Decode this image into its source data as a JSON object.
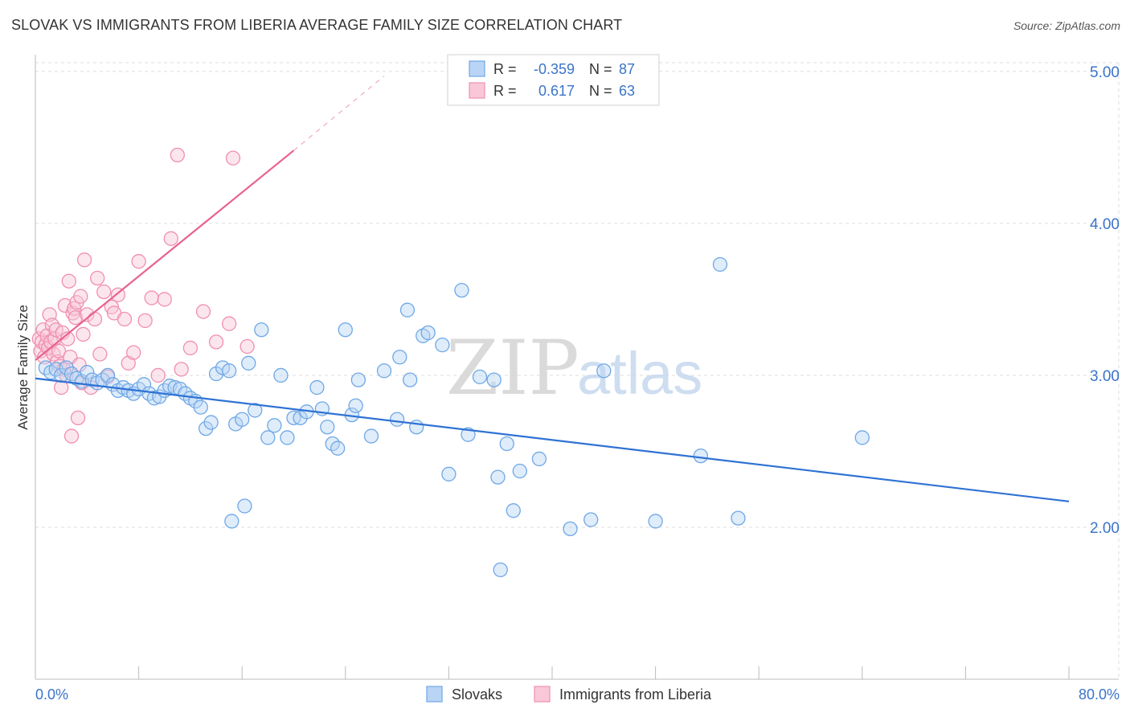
{
  "title": "SLOVAK VS IMMIGRANTS FROM LIBERIA AVERAGE FAMILY SIZE CORRELATION CHART",
  "source": "Source: ZipAtlas.com",
  "watermark": {
    "zip": "ZIP",
    "atlas": "atlas"
  },
  "colors": {
    "blue": "#6fa8e6",
    "blue_fill": "#b9d4f5",
    "blue_line": "#2f72d4",
    "pink": "#f08fb1",
    "pink_fill": "#f9c7d8",
    "pink_line": "#e8628f",
    "axis_text": "#3a74c9",
    "grid": "#dddddd"
  },
  "chart_data": {
    "type": "scatter",
    "xlabel": "",
    "ylabel": "Average Family Size",
    "xlim": [
      0,
      80
    ],
    "ylim": [
      1.0,
      5.1
    ],
    "x_tick_labels": [
      "0.0%",
      "80.0%"
    ],
    "y_ticks": [
      2.0,
      3.0,
      4.0,
      5.0
    ],
    "y_tick_labels": [
      "2.00",
      "3.00",
      "4.00",
      "5.00"
    ],
    "grid": true,
    "legend_top": [
      {
        "series": "Slovaks",
        "r_label": "R =",
        "r_value": "-0.359",
        "n_label": "N =",
        "n_value": "87"
      },
      {
        "series": "Immigrants from Liberia",
        "r_label": "R =",
        "r_value": "0.617",
        "n_label": "N =",
        "n_value": "63"
      }
    ],
    "series": [
      {
        "name": "Slovaks",
        "color": "#6fa8e6",
        "trend": {
          "x0": 0,
          "y0": 2.98,
          "x1": 80,
          "y1": 2.17
        },
        "points": [
          [
            0.8,
            3.05
          ],
          [
            1.2,
            3.02
          ],
          [
            1.6,
            3.04
          ],
          [
            2.0,
            3.0
          ],
          [
            2.4,
            3.05
          ],
          [
            2.8,
            3.01
          ],
          [
            3.2,
            2.98
          ],
          [
            3.6,
            2.96
          ],
          [
            4.0,
            3.02
          ],
          [
            4.4,
            2.97
          ],
          [
            4.8,
            2.95
          ],
          [
            5.2,
            2.97
          ],
          [
            5.6,
            3.0
          ],
          [
            6.0,
            2.94
          ],
          [
            6.4,
            2.9
          ],
          [
            6.8,
            2.92
          ],
          [
            7.2,
            2.9
          ],
          [
            7.6,
            2.88
          ],
          [
            8.0,
            2.91
          ],
          [
            8.4,
            2.94
          ],
          [
            8.8,
            2.88
          ],
          [
            9.2,
            2.85
          ],
          [
            9.6,
            2.86
          ],
          [
            10.0,
            2.9
          ],
          [
            10.4,
            2.93
          ],
          [
            10.8,
            2.92
          ],
          [
            11.2,
            2.91
          ],
          [
            11.6,
            2.88
          ],
          [
            12.0,
            2.85
          ],
          [
            12.4,
            2.83
          ],
          [
            12.8,
            2.79
          ],
          [
            13.2,
            2.65
          ],
          [
            13.6,
            2.69
          ],
          [
            14.0,
            3.01
          ],
          [
            14.5,
            3.05
          ],
          [
            15.0,
            3.03
          ],
          [
            15.5,
            2.68
          ],
          [
            16.0,
            2.71
          ],
          [
            16.5,
            3.08
          ],
          [
            17.0,
            2.77
          ],
          [
            17.5,
            3.3
          ],
          [
            18.0,
            2.59
          ],
          [
            18.5,
            2.67
          ],
          [
            19.0,
            3.0
          ],
          [
            19.5,
            2.59
          ],
          [
            20.0,
            2.72
          ],
          [
            20.5,
            2.72
          ],
          [
            21.0,
            2.76
          ],
          [
            21.8,
            2.92
          ],
          [
            22.2,
            2.78
          ],
          [
            22.6,
            2.66
          ],
          [
            23.0,
            2.55
          ],
          [
            23.4,
            2.52
          ],
          [
            24.0,
            3.3
          ],
          [
            24.5,
            2.74
          ],
          [
            24.8,
            2.8
          ],
          [
            25.0,
            2.97
          ],
          [
            26.0,
            2.6
          ],
          [
            27.0,
            3.03
          ],
          [
            28.0,
            2.71
          ],
          [
            28.2,
            3.12
          ],
          [
            28.8,
            3.43
          ],
          [
            29.0,
            2.97
          ],
          [
            29.5,
            2.66
          ],
          [
            30.0,
            3.26
          ],
          [
            30.4,
            3.28
          ],
          [
            31.5,
            3.2
          ],
          [
            32.0,
            2.35
          ],
          [
            33.0,
            3.56
          ],
          [
            33.5,
            2.61
          ],
          [
            34.4,
            2.99
          ],
          [
            35.5,
            2.97
          ],
          [
            35.8,
            2.33
          ],
          [
            36.5,
            2.55
          ],
          [
            37.0,
            2.11
          ],
          [
            37.5,
            2.37
          ],
          [
            39.0,
            2.45
          ],
          [
            36.0,
            1.72
          ],
          [
            41.4,
            1.99
          ],
          [
            43.0,
            2.05
          ],
          [
            44.0,
            3.03
          ],
          [
            48.0,
            2.04
          ],
          [
            51.5,
            2.47
          ],
          [
            53.0,
            3.73
          ],
          [
            54.4,
            2.06
          ],
          [
            64.0,
            2.59
          ],
          [
            16.2,
            2.14
          ],
          [
            15.2,
            2.04
          ]
        ]
      },
      {
        "name": "Immigrants from Liberia",
        "color": "#f08fb1",
        "trend": {
          "x0": 0,
          "y0": 3.1,
          "x1": 20,
          "y1": 4.48,
          "dash_x1": 27,
          "dash_y1": 4.97
        },
        "points": [
          [
            0.3,
            3.24
          ],
          [
            0.4,
            3.16
          ],
          [
            0.5,
            3.22
          ],
          [
            0.6,
            3.3
          ],
          [
            0.7,
            3.12
          ],
          [
            0.8,
            3.2
          ],
          [
            0.9,
            3.26
          ],
          [
            1.0,
            3.18
          ],
          [
            1.1,
            3.4
          ],
          [
            1.2,
            3.22
          ],
          [
            1.3,
            3.33
          ],
          [
            1.4,
            3.14
          ],
          [
            1.5,
            3.24
          ],
          [
            1.6,
            3.3
          ],
          [
            1.7,
            3.09
          ],
          [
            1.8,
            3.16
          ],
          [
            1.9,
            3.06
          ],
          [
            2.0,
            2.92
          ],
          [
            2.1,
            3.28
          ],
          [
            2.2,
            3.04
          ],
          [
            2.3,
            3.46
          ],
          [
            2.4,
            3.0
          ],
          [
            2.5,
            3.24
          ],
          [
            2.6,
            3.62
          ],
          [
            2.7,
            3.12
          ],
          [
            2.8,
            2.6
          ],
          [
            2.9,
            3.41
          ],
          [
            3.0,
            3.44
          ],
          [
            3.1,
            3.38
          ],
          [
            3.2,
            3.48
          ],
          [
            3.3,
            2.72
          ],
          [
            3.4,
            3.07
          ],
          [
            3.5,
            3.52
          ],
          [
            3.6,
            2.95
          ],
          [
            3.7,
            3.27
          ],
          [
            3.8,
            3.76
          ],
          [
            4.0,
            3.4
          ],
          [
            4.3,
            2.92
          ],
          [
            4.6,
            3.37
          ],
          [
            4.8,
            3.64
          ],
          [
            5.0,
            3.14
          ],
          [
            5.3,
            3.55
          ],
          [
            5.6,
            2.99
          ],
          [
            5.9,
            3.45
          ],
          [
            6.1,
            3.41
          ],
          [
            6.4,
            3.53
          ],
          [
            6.9,
            3.37
          ],
          [
            7.2,
            3.08
          ],
          [
            7.6,
            3.15
          ],
          [
            8.0,
            3.75
          ],
          [
            8.5,
            3.36
          ],
          [
            9.0,
            3.51
          ],
          [
            9.5,
            3.0
          ],
          [
            10.0,
            3.5
          ],
          [
            10.5,
            3.9
          ],
          [
            11.3,
            3.04
          ],
          [
            12.0,
            3.18
          ],
          [
            13.0,
            3.42
          ],
          [
            14.0,
            3.22
          ],
          [
            15.0,
            3.34
          ],
          [
            16.4,
            3.19
          ],
          [
            11.0,
            4.45
          ],
          [
            15.3,
            4.43
          ]
        ]
      }
    ]
  }
}
